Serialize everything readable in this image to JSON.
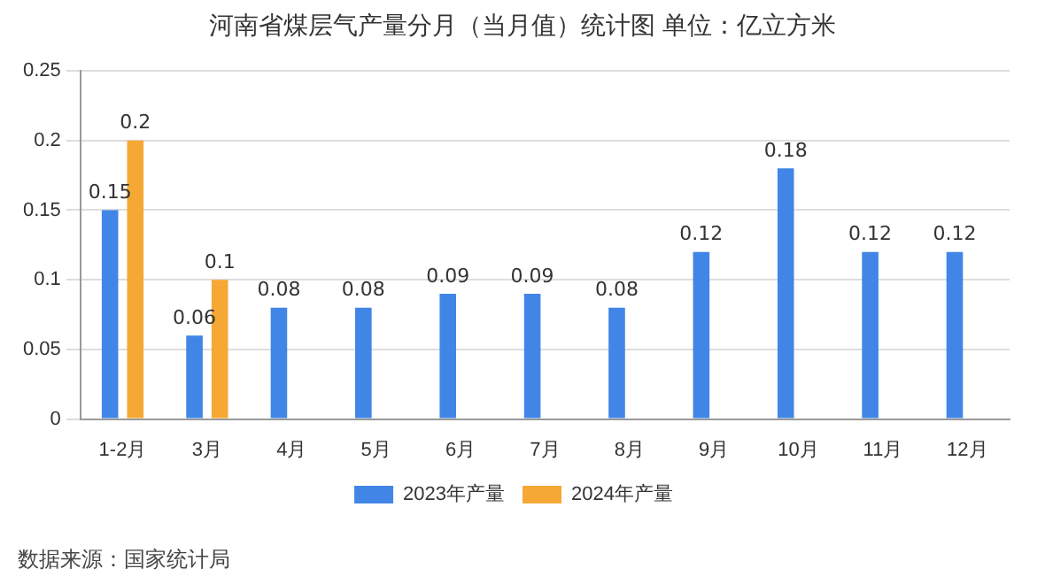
{
  "chart_data": {
    "type": "bar",
    "title": "河南省煤层气产量分月（当月值）统计图  单位：亿立方米",
    "categories": [
      "1-2月",
      "3月",
      "4月",
      "5月",
      "6月",
      "7月",
      "8月",
      "9月",
      "10月",
      "11月",
      "12月"
    ],
    "series": [
      {
        "name": "2023年产量",
        "color": "#4186e6",
        "values": [
          0.15,
          0.06,
          0.08,
          0.08,
          0.09,
          0.09,
          0.08,
          0.12,
          0.18,
          0.12,
          0.12
        ]
      },
      {
        "name": "2024年产量",
        "color": "#f5a834",
        "values": [
          0.2,
          0.1,
          null,
          null,
          null,
          null,
          null,
          null,
          null,
          null,
          null
        ]
      }
    ],
    "ylim": [
      0,
      0.25
    ],
    "yticks": [
      0,
      0.05,
      0.1,
      0.15,
      0.2,
      0.25
    ],
    "grid": "y",
    "legend": "bottom",
    "data_labels": true,
    "annotations": [
      "数据来源：国家统计局"
    ]
  }
}
